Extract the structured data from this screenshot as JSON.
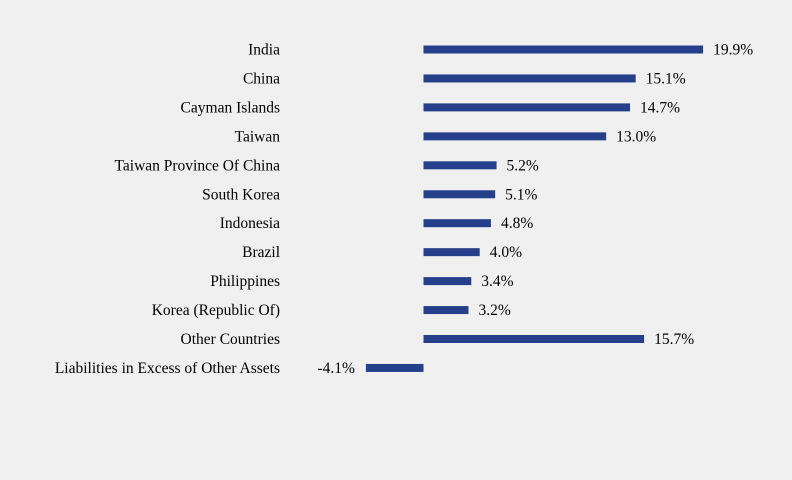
{
  "chart_data": {
    "type": "bar",
    "orientation": "horizontal",
    "categories": [
      "India",
      "China",
      "Cayman Islands",
      "Taiwan",
      "Taiwan Province Of China",
      "South Korea",
      "Indonesia",
      "Brazil",
      "Philippines",
      "Korea (Republic Of)",
      "Other Countries",
      "Liabilities in Excess of Other Assets"
    ],
    "values": [
      19.9,
      15.1,
      14.7,
      13.0,
      5.2,
      5.1,
      4.8,
      4.0,
      3.4,
      3.2,
      15.7,
      -4.1
    ],
    "value_labels": [
      "19.9%",
      "15.1%",
      "14.7%",
      "13.0%",
      "5.2%",
      "5.1%",
      "4.8%",
      "4.0%",
      "3.4%",
      "3.2%",
      "15.7%",
      "-4.1%"
    ],
    "title": "",
    "xlabel": "",
    "ylabel": "",
    "grid": false,
    "legend": "none",
    "bar_color": "#253f8a"
  }
}
